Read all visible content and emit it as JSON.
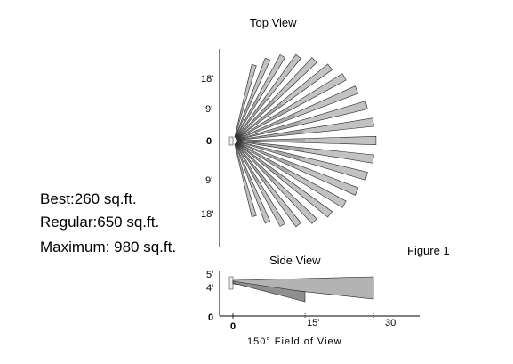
{
  "top_view": {
    "title": "Top View",
    "y_tick_labels": [
      "18'",
      "9'",
      "0",
      "9'",
      "18'"
    ]
  },
  "side_view": {
    "title": "Side View",
    "y_tick_labels": [
      "5'",
      "4'",
      "0"
    ],
    "x_tick_labels": [
      "0",
      "15'",
      "30'"
    ]
  },
  "figure_label": "Figure 1",
  "coverage": {
    "best": "Best:260 sq.ft.",
    "regular": "Regular:650 sq.ft.",
    "maximum": "Maximum: 980 sq.ft."
  },
  "field_of_view_label": "150°  Field of View",
  "colors": {
    "beam_fill": "#b3b3b3",
    "beam_stroke": "#222222",
    "axis": "#000000"
  }
}
